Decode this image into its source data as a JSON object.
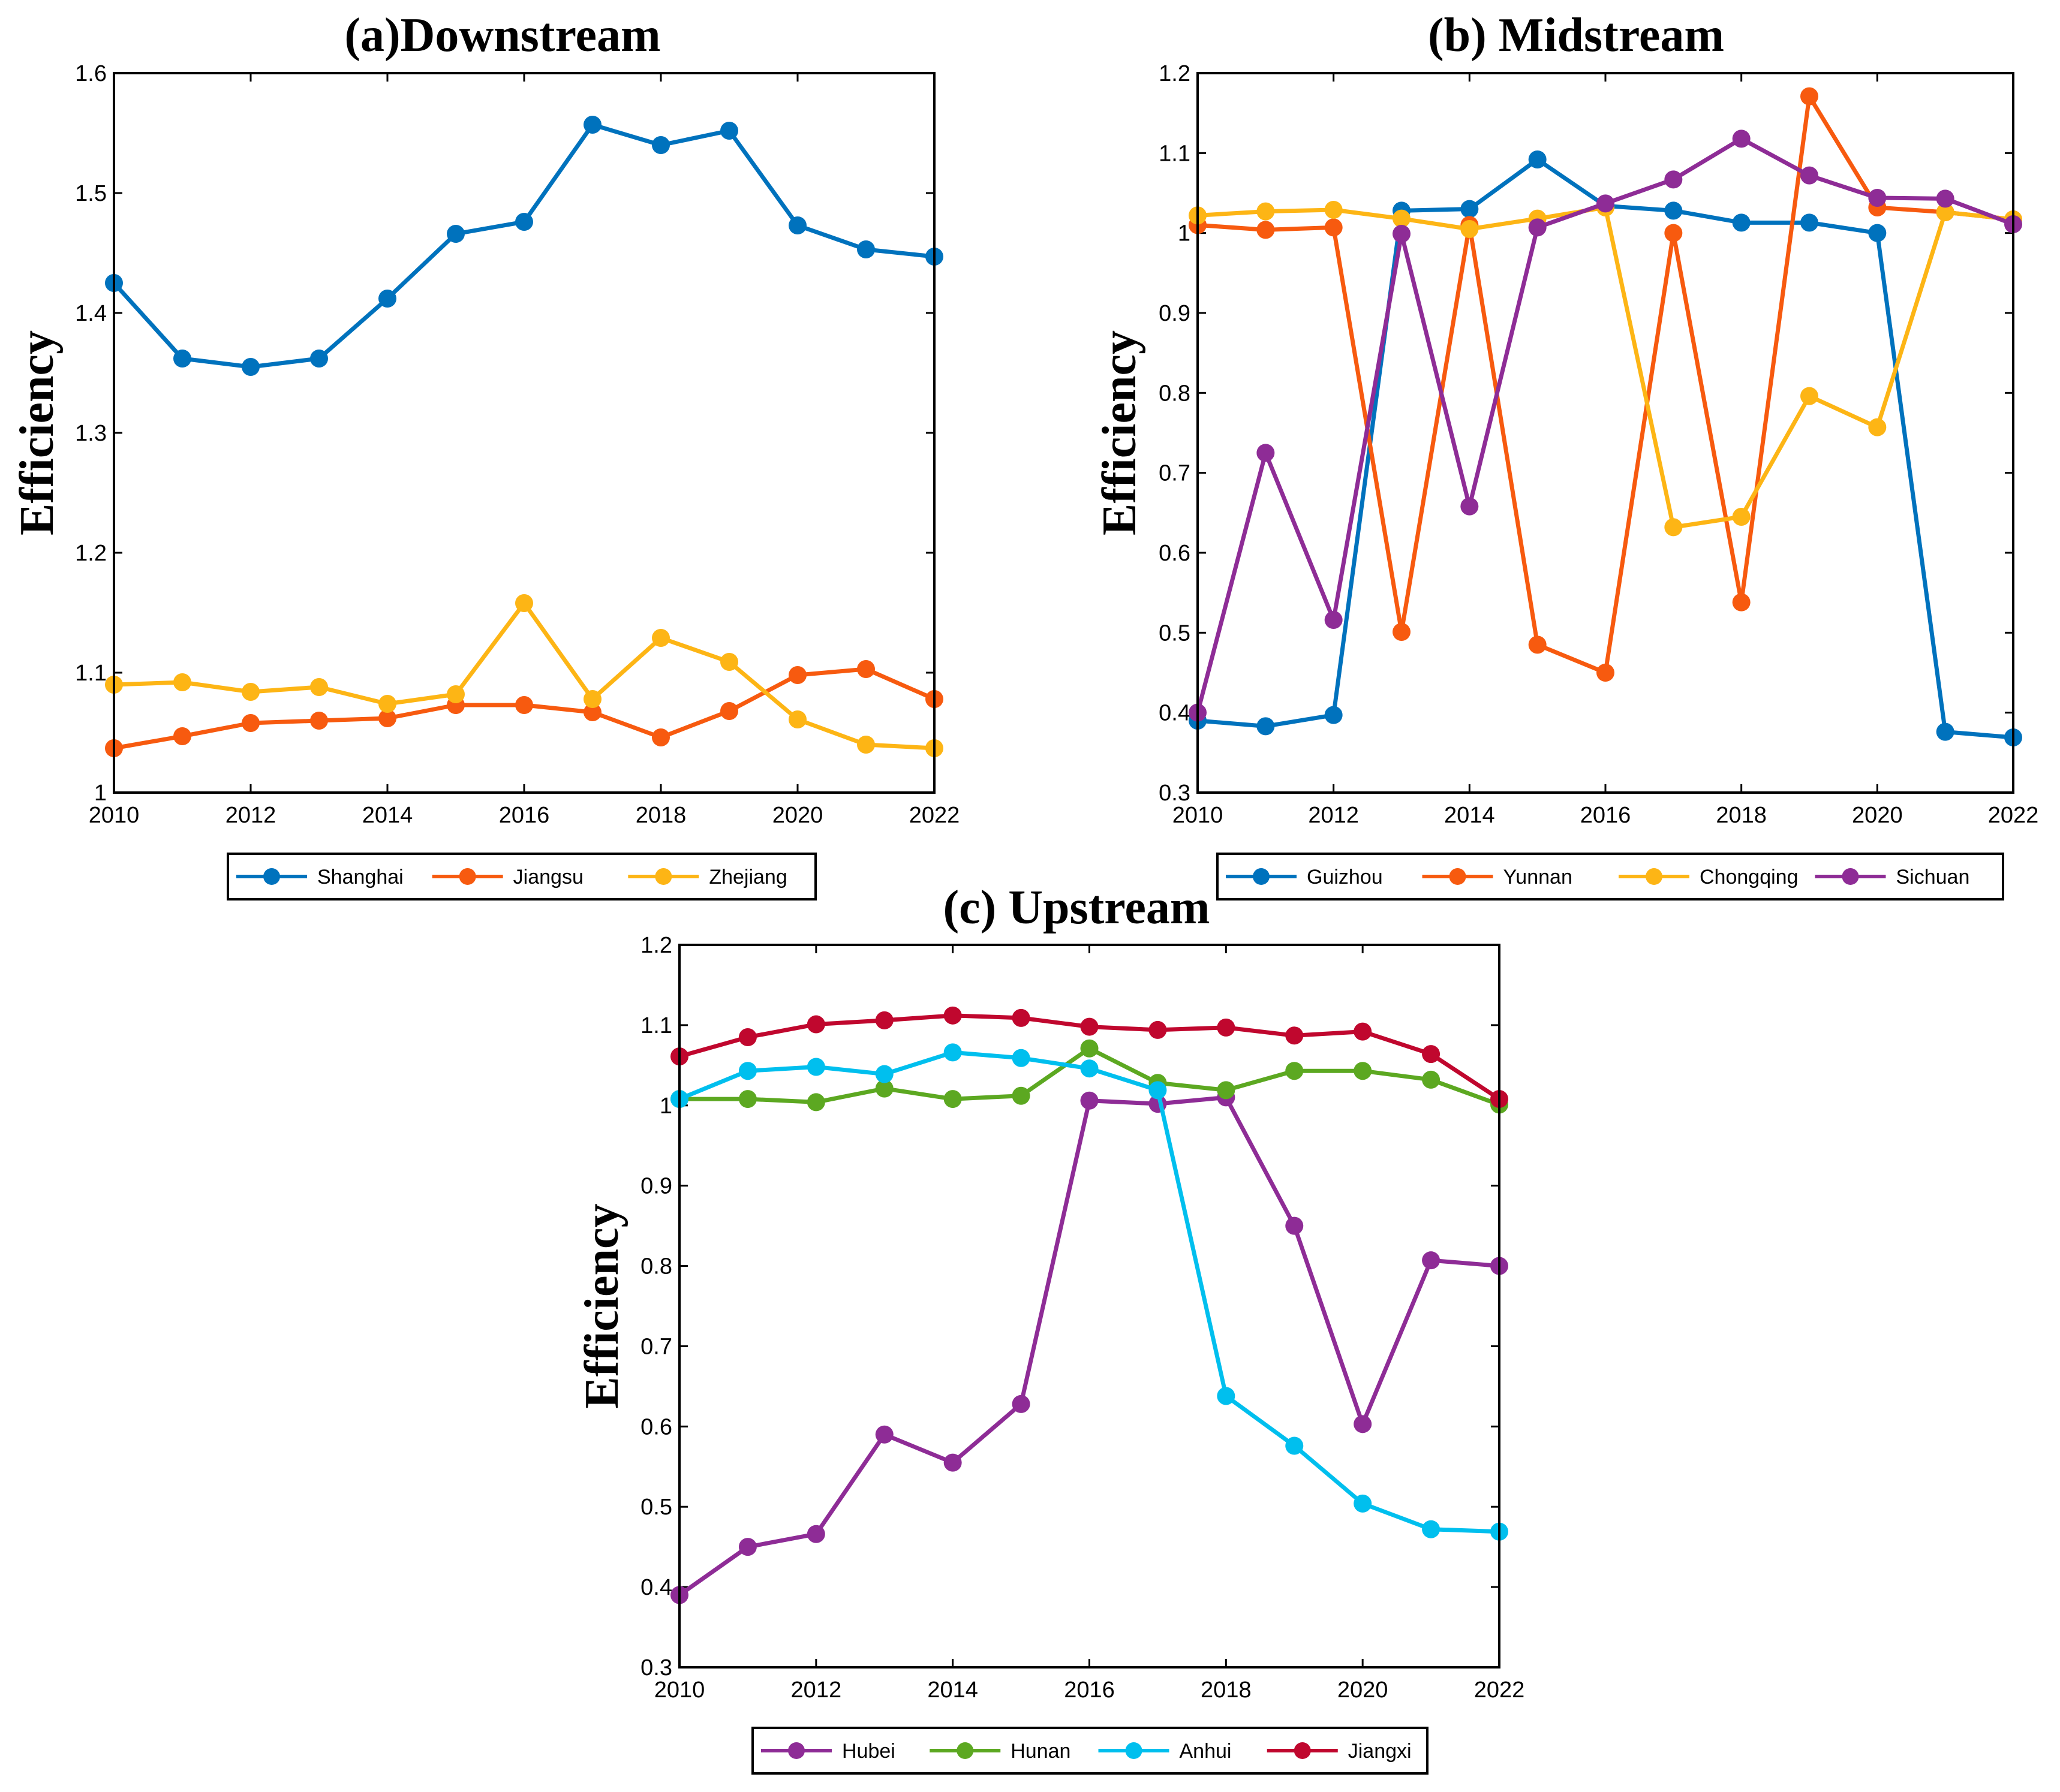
{
  "chart_data": [
    {
      "type": "line",
      "title": "(a)Downstream",
      "xlabel": "",
      "ylabel": "Efficiency",
      "xlim": [
        2010,
        2022
      ],
      "ylim": [
        1,
        1.6
      ],
      "x": [
        2010,
        2011,
        2012,
        2013,
        2014,
        2015,
        2016,
        2017,
        2018,
        2019,
        2020,
        2021,
        2022
      ],
      "xticks": [
        2010,
        2012,
        2014,
        2016,
        2018,
        2020,
        2022
      ],
      "yticks": [
        1,
        1.1,
        1.2,
        1.3,
        1.4,
        1.5,
        1.6
      ],
      "ytick_labels": [
        "1",
        "1.1",
        "1.2",
        "1.3",
        "1.4",
        "1.5",
        "1.6"
      ],
      "legend_position": "bottom",
      "series": [
        {
          "name": "Shanghai",
          "color": "#0072BD",
          "values": [
            1.425,
            1.362,
            1.355,
            1.362,
            1.412,
            1.466,
            1.476,
            1.557,
            1.54,
            1.552,
            1.473,
            1.453,
            1.447
          ]
        },
        {
          "name": "Jiangsu",
          "color": "#F75A0F",
          "values": [
            1.037,
            1.047,
            1.058,
            1.06,
            1.062,
            1.073,
            1.073,
            1.067,
            1.046,
            1.068,
            1.098,
            1.103,
            1.078
          ]
        },
        {
          "name": "Zhejiang",
          "color": "#FDB515",
          "values": [
            1.09,
            1.092,
            1.084,
            1.088,
            1.074,
            1.082,
            1.158,
            1.078,
            1.129,
            1.109,
            1.061,
            1.04,
            1.037
          ]
        }
      ]
    },
    {
      "type": "line",
      "title": "(b) Midstream",
      "xlabel": "",
      "ylabel": "Efficiency",
      "xlim": [
        2010,
        2022
      ],
      "ylim": [
        0.3,
        1.2
      ],
      "x": [
        2010,
        2011,
        2012,
        2013,
        2014,
        2015,
        2016,
        2017,
        2018,
        2019,
        2020,
        2021,
        2022
      ],
      "xticks": [
        2010,
        2012,
        2014,
        2016,
        2018,
        2020,
        2022
      ],
      "yticks": [
        0.3,
        0.4,
        0.5,
        0.6,
        0.7,
        0.8,
        0.9,
        1.0,
        1.1,
        1.2
      ],
      "ytick_labels": [
        "0.3",
        "0.4",
        "0.5",
        "0.6",
        "0.7",
        "0.8",
        "0.9",
        "1",
        "1.1",
        "1.2"
      ],
      "legend_position": "bottom",
      "series": [
        {
          "name": "Guizhou",
          "color": "#0072BD",
          "values": [
            0.39,
            0.383,
            0.397,
            1.028,
            1.03,
            1.092,
            1.034,
            1.028,
            1.013,
            1.013,
            1.0,
            0.376,
            0.369
          ]
        },
        {
          "name": "Yunnan",
          "color": "#F75A0F",
          "values": [
            1.01,
            1.004,
            1.007,
            0.501,
            1.01,
            0.485,
            0.45,
            1.0,
            0.538,
            1.171,
            1.032,
            1.026,
            1.017
          ]
        },
        {
          "name": "Chongqing",
          "color": "#FDB515",
          "values": [
            1.022,
            1.027,
            1.029,
            1.018,
            1.005,
            1.018,
            1.032,
            0.632,
            0.645,
            0.796,
            0.757,
            1.026,
            1.017
          ]
        },
        {
          "name": "Sichuan",
          "color": "#8E2C96",
          "values": [
            0.4,
            0.725,
            0.516,
            0.999,
            0.658,
            1.007,
            1.037,
            1.067,
            1.118,
            1.072,
            1.044,
            1.043,
            1.011
          ]
        }
      ]
    },
    {
      "type": "line",
      "title": "(c) Upstream",
      "xlabel": "",
      "ylabel": "Efficiency",
      "xlim": [
        2010,
        2022
      ],
      "ylim": [
        0.3,
        1.2
      ],
      "x": [
        2010,
        2011,
        2012,
        2013,
        2014,
        2015,
        2016,
        2017,
        2018,
        2019,
        2020,
        2021,
        2022
      ],
      "xticks": [
        2010,
        2012,
        2014,
        2016,
        2018,
        2020,
        2022
      ],
      "yticks": [
        0.3,
        0.4,
        0.5,
        0.6,
        0.7,
        0.8,
        0.9,
        1.0,
        1.1,
        1.2
      ],
      "ytick_labels": [
        "0.3",
        "0.4",
        "0.5",
        "0.6",
        "0.7",
        "0.8",
        "0.9",
        "1",
        "1.1",
        "1.2"
      ],
      "legend_position": "bottom",
      "series": [
        {
          "name": "Hubei",
          "color": "#8E2C96",
          "values": [
            0.39,
            0.45,
            0.466,
            0.59,
            0.555,
            0.628,
            1.006,
            1.002,
            1.01,
            0.85,
            0.603,
            0.807,
            0.8
          ]
        },
        {
          "name": "Hunan",
          "color": "#5CA821",
          "values": [
            1.008,
            1.008,
            1.004,
            1.021,
            1.008,
            1.012,
            1.071,
            1.028,
            1.019,
            1.043,
            1.043,
            1.032,
            1.001
          ]
        },
        {
          "name": "Anhui",
          "color": "#00BFEE",
          "values": [
            1.008,
            1.043,
            1.048,
            1.039,
            1.066,
            1.059,
            1.046,
            1.019,
            0.638,
            0.576,
            0.504,
            0.472,
            0.469
          ]
        },
        {
          "name": "Jiangxi",
          "color": "#C0072E",
          "values": [
            1.061,
            1.085,
            1.101,
            1.106,
            1.112,
            1.109,
            1.098,
            1.094,
            1.097,
            1.087,
            1.092,
            1.064,
            1.008
          ]
        }
      ]
    }
  ]
}
